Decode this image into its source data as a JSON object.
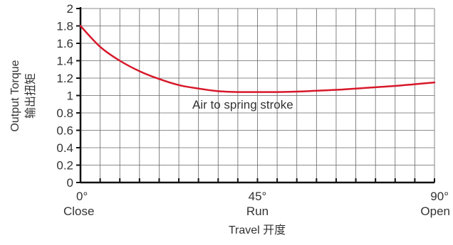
{
  "chart_data": {
    "type": "line",
    "xlabel": "Travel 开度",
    "ylabel_en": "Output Torque",
    "ylabel_cn": "输出扭矩",
    "ylim": [
      0,
      2
    ],
    "yticks": [
      "0",
      "0.2",
      "0.4",
      "0.6",
      "0.8",
      "1",
      "1.2",
      "1.4",
      "1.6",
      "1.8",
      "2"
    ],
    "xlim": [
      0,
      90
    ],
    "xticks": [
      {
        "value": 0,
        "label": "0°",
        "sublabel": "Close"
      },
      {
        "value": 45,
        "label": "45°",
        "sublabel": "Run"
      },
      {
        "value": 90,
        "label": "90°",
        "sublabel": "Open"
      }
    ],
    "grid": true,
    "annotation": "Air to spring stroke",
    "series": [
      {
        "color": "#d7182a",
        "x": [
          0,
          5,
          10,
          15,
          20,
          25,
          30,
          35,
          40,
          45,
          50,
          55,
          60,
          65,
          70,
          75,
          80,
          85,
          90
        ],
        "y": [
          1.8,
          1.56,
          1.4,
          1.28,
          1.19,
          1.12,
          1.08,
          1.05,
          1.04,
          1.04,
          1.04,
          1.045,
          1.055,
          1.065,
          1.08,
          1.095,
          1.11,
          1.13,
          1.15
        ]
      }
    ]
  }
}
